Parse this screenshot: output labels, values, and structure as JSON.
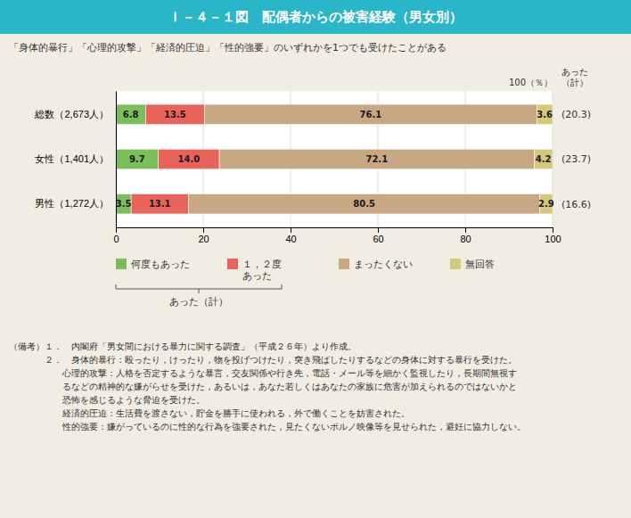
{
  "chart_data": {
    "type": "bar",
    "orientation": "horizontal",
    "stacked": true,
    "data_labels": true,
    "grid": true,
    "legend": "bottom",
    "title": "Ｉ－４－１図　配偶者からの被害経験（男女別）",
    "subtitle": "「身体的暴行」「心理的攻撃」「経済的圧迫」「性的強要」のいずれかを1つでも受けたことがある",
    "categories": [
      "総数（2,673人）",
      "女性（1,401人）",
      "男性（1,272人）"
    ],
    "series": [
      {
        "name": "何度もあった",
        "color": "#7bbf5a",
        "values": [
          6.8,
          9.7,
          3.5
        ]
      },
      {
        "name": "１，２度\nあった",
        "color": "#e8635a",
        "values": [
          13.5,
          14.0,
          13.1
        ],
        "value_labels": [
          "13.5",
          "14.0",
          "13.1"
        ]
      },
      {
        "name": "まったくない",
        "color": "#c8a882",
        "values": [
          76.1,
          72.1,
          80.5
        ]
      },
      {
        "name": "無回答",
        "color": "#d4c87a",
        "values": [
          3.6,
          4.2,
          2.9
        ]
      }
    ],
    "xlim": [
      0,
      100
    ],
    "xticks": [
      0,
      20,
      40,
      60,
      80,
      100
    ],
    "x_unit_label": "100（％）",
    "totals": {
      "label": "あった\n（計）",
      "values": [
        20.3,
        23.7,
        16.6
      ],
      "value_labels": [
        "(20.3)",
        "(23.7)",
        "(16.6)"
      ]
    },
    "brace_label": "あった（計）",
    "notes": [
      "（備考）１．　内閣府「男女間における暴力に関する調査」（平成２６年）より作成。",
      "　　　　２．　身体的暴行：殴ったり，けったり，物を投げつけたり，突き飛ばしたりするなどの身体に対する暴行を受けた。",
      "　　　　　　心理的攻撃：人格を否定するような暴言，交友関係や行き先，電話・メール等を細かく監視したり，長期間無視す",
      "　　　　　　るなどの精神的な嫌がらせを受けた，あるいは，あなた若しくはあなたの家族に危害が加えられるのではないかと",
      "　　　　　　恐怖を感じるような脅迫を受けた。",
      "　　　　　　経済的圧迫：生活費を渡さない，貯金を勝手に使われる，外で働くことを妨害された。",
      "　　　　　　性的強要：嫌がっているのに性的な行為を強要された，見たくないポルノ映像等を見せられた，避妊に協力しない。"
    ]
  }
}
